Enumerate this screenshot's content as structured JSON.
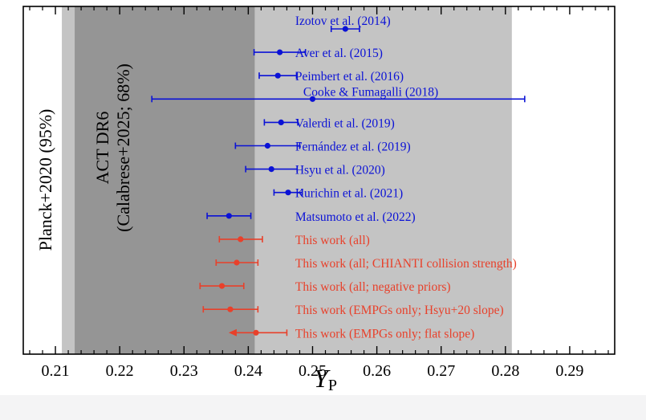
{
  "chart_data": {
    "type": "scatter",
    "xlabel": "Y",
    "xlabel_sub": "P",
    "xlim": [
      0.205,
      0.297
    ],
    "xticks": [
      "0.21",
      "0.22",
      "0.23",
      "0.24",
      "0.25",
      "0.26",
      "0.27",
      "0.28",
      "0.29"
    ],
    "bands": [
      {
        "name": "Planck+2020 (95%)",
        "label_lines": [
          "Planck+2020 (95%)"
        ],
        "range": [
          0.211,
          0.281
        ],
        "color": "#c4c4c4"
      },
      {
        "name": "ACT DR6 (Calabrese+2025; 68%)",
        "label_lines": [
          "ACT DR6",
          "(Calabrese+2025; 68%)"
        ],
        "range": [
          0.213,
          0.241
        ],
        "color": "#959595"
      }
    ],
    "series": [
      {
        "color": "#0b12d6",
        "points": [
          {
            "label": "Izotov et al. (2014)",
            "value": 0.2551,
            "lo": 0.2529,
            "hi": 0.2573
          },
          {
            "label": "Aver et al. (2015)",
            "value": 0.2449,
            "lo": 0.2409,
            "hi": 0.2489
          },
          {
            "label": "Peimbert et al. (2016)",
            "value": 0.2446,
            "lo": 0.2417,
            "hi": 0.2475
          },
          {
            "label": "Cooke & Fumagalli (2018)",
            "value": 0.25,
            "lo": 0.225,
            "hi": 0.283
          },
          {
            "label": "Valerdi et al. (2019)",
            "value": 0.2451,
            "lo": 0.2425,
            "hi": 0.2477
          },
          {
            "label": "Fernández et al. (2019)",
            "value": 0.243,
            "lo": 0.238,
            "hi": 0.248
          },
          {
            "label": "Hsyu et al. (2020)",
            "value": 0.2436,
            "lo": 0.2396,
            "hi": 0.2476
          },
          {
            "label": "Kurichin et al. (2021)",
            "value": 0.2462,
            "lo": 0.244,
            "hi": 0.2484
          },
          {
            "label": "Matsumoto et al. (2022)",
            "value": 0.237,
            "lo": 0.2336,
            "hi": 0.2404
          }
        ]
      },
      {
        "color": "#e8402a",
        "points": [
          {
            "label": "This work (all)",
            "value": 0.2388,
            "lo": 0.2355,
            "hi": 0.2422
          },
          {
            "label": "This work (all; CHIANTI collision strength)",
            "value": 0.2382,
            "lo": 0.235,
            "hi": 0.2415
          },
          {
            "label": "This work (all; negative priors)",
            "value": 0.2359,
            "lo": 0.2325,
            "hi": 0.2393
          },
          {
            "label": "This work (EMPGs only; Hsyu+20 slope)",
            "value": 0.2372,
            "lo": 0.233,
            "hi": 0.2415
          },
          {
            "label": "This work (EMPGs only; flat slope)",
            "value": 0.2412,
            "lo": 0.2372,
            "hi": 0.246,
            "upper_limit": true
          }
        ]
      }
    ]
  }
}
